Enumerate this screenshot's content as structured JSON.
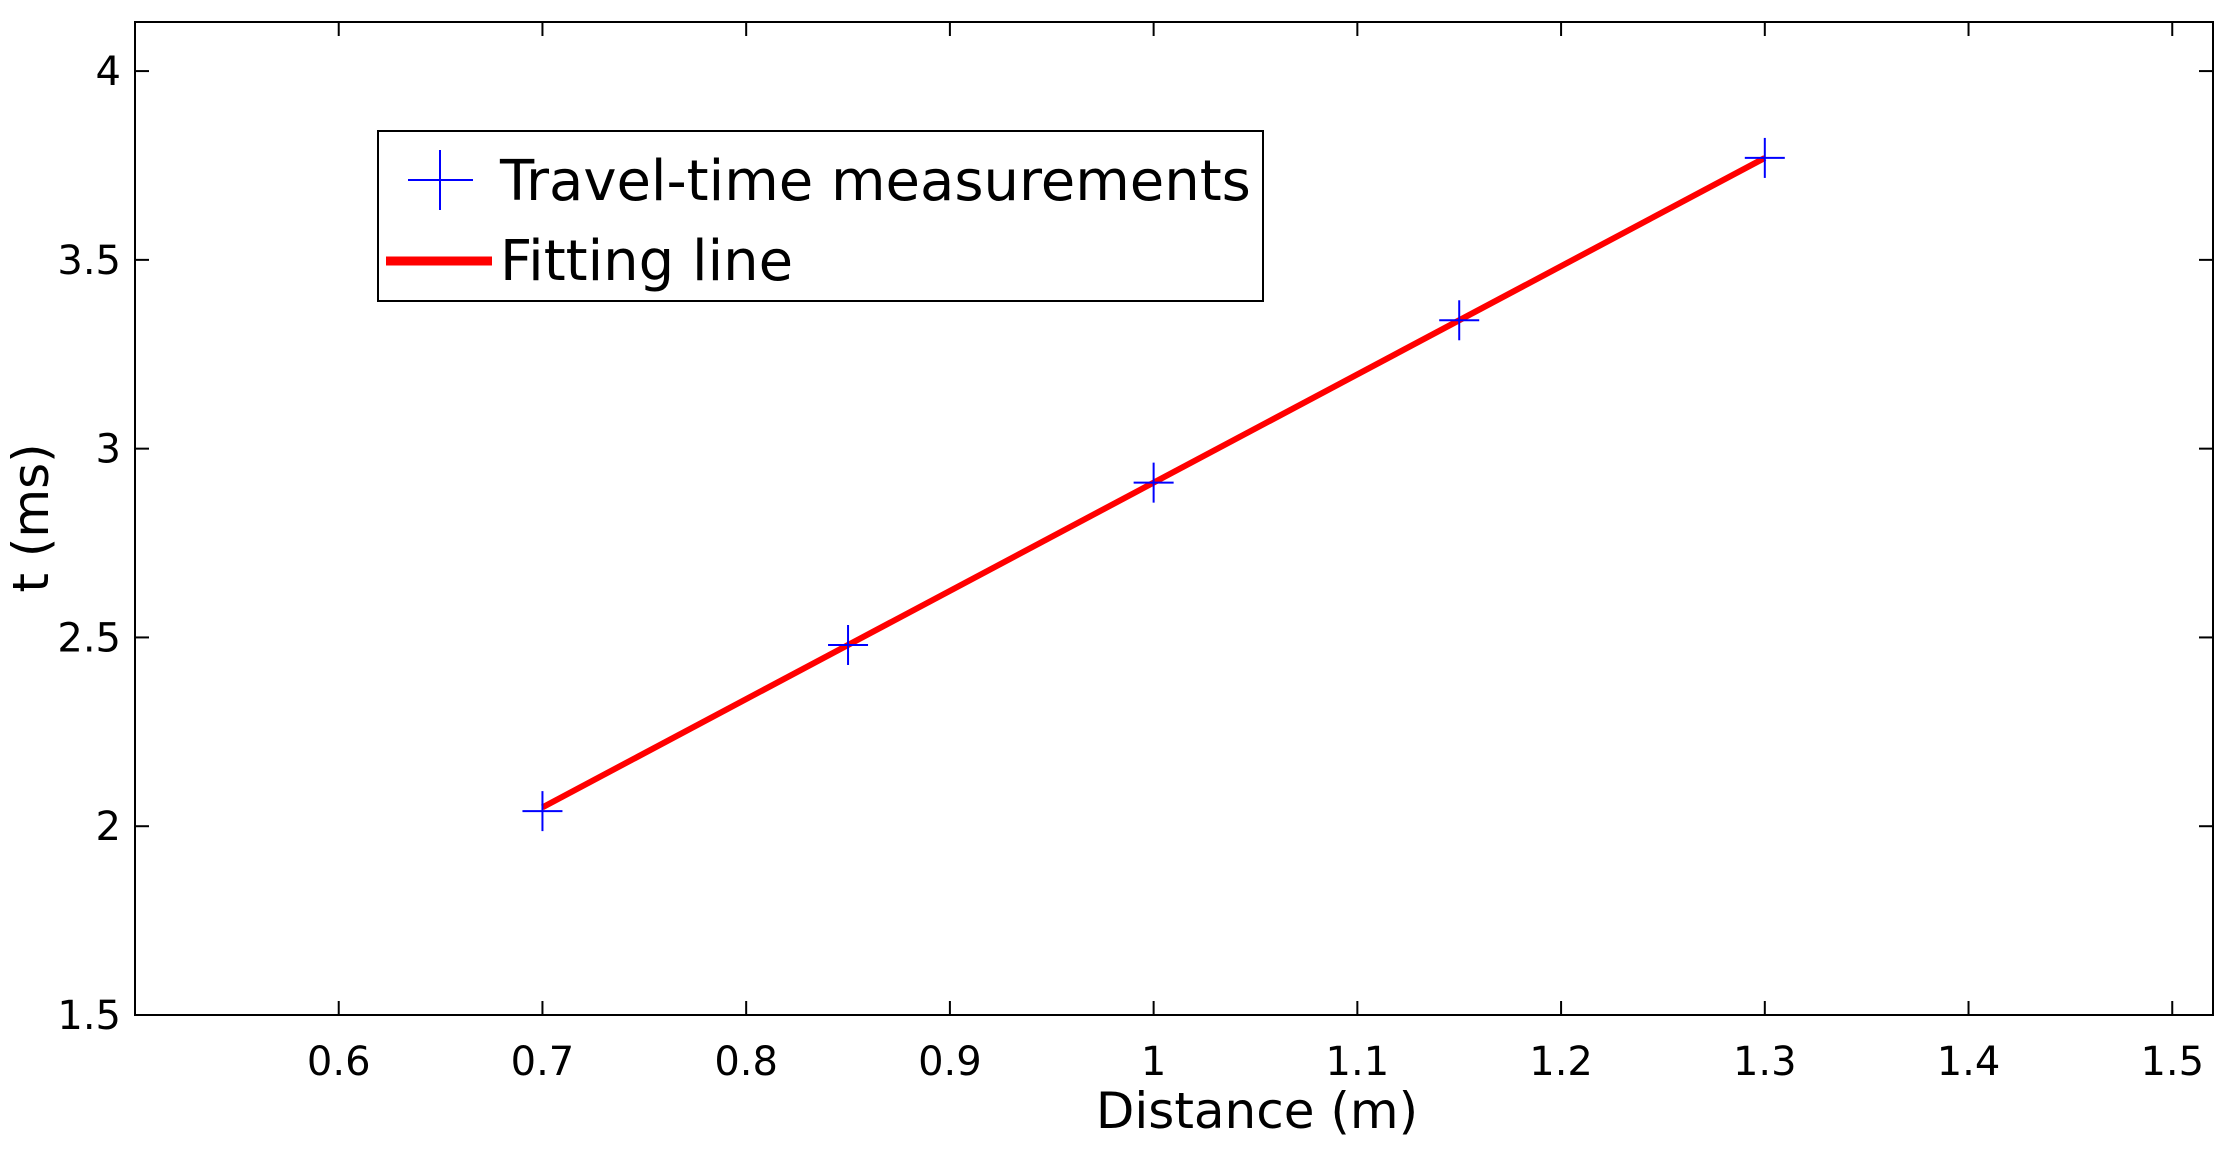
{
  "chart_data": {
    "type": "line",
    "title": "",
    "xlabel": "Distance (m)",
    "ylabel": "t (ms)",
    "xlim": [
      0.5,
      1.52
    ],
    "ylim": [
      1.5,
      4.13
    ],
    "xticks": [
      "0.6",
      "0.7",
      "0.8",
      "0.9",
      "1",
      "1.1",
      "1.2",
      "1.3",
      "1.4",
      "1.5"
    ],
    "yticks": [
      "1.5",
      "2",
      "2.5",
      "3",
      "3.5",
      "4"
    ],
    "grid": false,
    "legend_position": "top-left",
    "series": [
      {
        "name": "Travel-time measurements",
        "kind": "scatter",
        "marker": "plus",
        "color": "#0000ff",
        "x": [
          0.7,
          0.85,
          1.0,
          1.15,
          1.3
        ],
        "y": [
          2.04,
          2.48,
          2.91,
          3.34,
          3.77
        ]
      },
      {
        "name": "Fitting line",
        "kind": "line",
        "color": "#ff0000",
        "x": [
          0.7,
          1.3
        ],
        "y": [
          2.05,
          3.77
        ]
      }
    ]
  }
}
